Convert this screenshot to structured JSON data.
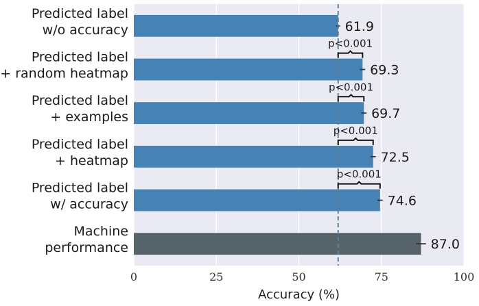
{
  "chart_data": {
    "type": "bar",
    "orientation": "horizontal",
    "categories": [
      [
        "Predicted label",
        "w/o accuracy"
      ],
      [
        "Predicted label",
        "+ random heatmap"
      ],
      [
        "Predicted label",
        "+ examples"
      ],
      [
        "Predicted label",
        "+ heatmap"
      ],
      [
        "Predicted label",
        "w/ accuracy"
      ],
      [
        "Machine",
        "performance"
      ]
    ],
    "values": [
      61.9,
      69.3,
      69.7,
      72.5,
      74.6,
      87.0
    ],
    "value_labels": [
      "61.9",
      "69.3",
      "69.7",
      "72.5",
      "74.6",
      "87.0"
    ],
    "error": [
      0.6,
      0.8,
      0.8,
      0.8,
      0.8,
      1.5
    ],
    "colors": [
      "#4682b4",
      "#4682b4",
      "#4682b4",
      "#4682b4",
      "#4682b4",
      "#56636b"
    ],
    "reference_line": {
      "value": 61.9,
      "color": "#5f7f96",
      "style": "dashed"
    },
    "significance": [
      {
        "category_index": 1,
        "label": "p<0.001"
      },
      {
        "category_index": 2,
        "label": "p<0.001"
      },
      {
        "category_index": 3,
        "label": "p<0.001"
      },
      {
        "category_index": 4,
        "label": "p<0.001"
      }
    ],
    "xlabel": "Accuracy (%)",
    "xlim": [
      0,
      100
    ],
    "xticks": [
      0,
      25,
      50,
      75,
      100
    ],
    "xtick_labels": [
      "0",
      "25",
      "50",
      "75",
      "100"
    ],
    "grid": true,
    "background": "#eaeaf2"
  }
}
